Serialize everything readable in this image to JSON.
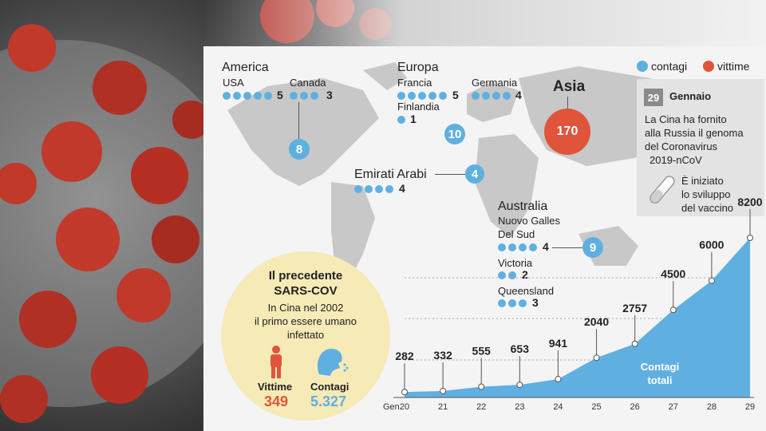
{
  "legend": {
    "cases_label": "contagi",
    "deaths_label": "vittime",
    "cases_color": "#5fb0e0",
    "deaths_color": "#e0543a"
  },
  "regions": {
    "america": {
      "name": "America",
      "usa": "USA",
      "usa_count": "5",
      "canada": "Canada",
      "canada_count": "3",
      "total": "8"
    },
    "europa": {
      "name": "Europa",
      "francia": "Francia",
      "francia_count": "5",
      "finlandia": "Finlandia",
      "finlandia_count": "1",
      "germania": "Germania",
      "germania_count": "4",
      "total": "10"
    },
    "asia": {
      "name": "Asia",
      "total": "170"
    },
    "emirati": {
      "name": "Emirati Arabi",
      "count": "4",
      "total": "4"
    },
    "australia": {
      "name": "Australia",
      "nsw_line1": "Nuovo Galles",
      "nsw_line2": "Del Sud",
      "nsw_count": "4",
      "victoria": "Victoria",
      "victoria_count": "2",
      "queensland": "Queensland",
      "queensland_count": "3",
      "total": "9"
    }
  },
  "sidebox": {
    "date_day": "29",
    "date_month": "Gennaio",
    "note_1": "La Cina ha fornito",
    "note_2": "alla Russia il genoma",
    "note_3": "del Coronavirus",
    "note_4": "2019-nCoV",
    "vaccine_1": "È iniziato",
    "vaccine_2": "lo sviluppo",
    "vaccine_3": "del vaccino"
  },
  "sars": {
    "title_1": "Il precedente",
    "title_2": "SARS-COV",
    "sub_1": "In Cina nel 2002",
    "sub_2": "il primo essere umano",
    "sub_3": "infettato",
    "deaths_label": "Vittime",
    "deaths_value": "349",
    "cases_label": "Contagi",
    "cases_value": "5.327"
  },
  "chart_data": {
    "type": "area",
    "x_prefix": "Gen",
    "x": [
      "20",
      "21",
      "22",
      "23",
      "24",
      "25",
      "26",
      "27",
      "28",
      "29"
    ],
    "values": [
      282,
      332,
      555,
      653,
      941,
      2040,
      2757,
      4500,
      6000,
      8200
    ],
    "area_label_1": "Contagi",
    "area_label_2": "totali",
    "color": "#5fb0e0"
  }
}
